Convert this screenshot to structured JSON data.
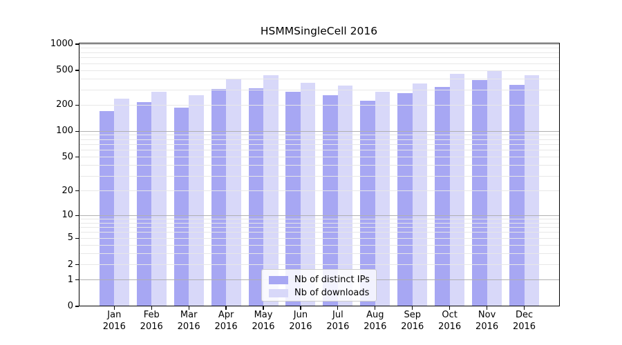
{
  "chart_data": {
    "type": "bar",
    "title": "HSMMSingleCell 2016",
    "categories": [
      "Jan",
      "Feb",
      "Mar",
      "Apr",
      "May",
      "Jun",
      "Jul",
      "Aug",
      "Sep",
      "Oct",
      "Nov",
      "Dec"
    ],
    "x_year_label": "2016",
    "series": [
      {
        "name": "Nb of distinct IPs",
        "color": "#a7a7f3",
        "values": [
          172,
          216,
          186,
          306,
          312,
          285,
          260,
          226,
          276,
          325,
          390,
          341
        ]
      },
      {
        "name": "Nb of downloads",
        "color": "#d8d8f9",
        "values": [
          236,
          285,
          262,
          404,
          440,
          362,
          337,
          285,
          356,
          453,
          505,
          440
        ]
      }
    ],
    "y_ticks": [
      0,
      1,
      2,
      5,
      10,
      20,
      50,
      100,
      200,
      500,
      1000
    ],
    "y_scale": "log10(value+1)",
    "ylim": [
      0,
      1000
    ],
    "grid": {
      "major_values": [
        1,
        10,
        100,
        1000
      ],
      "minor_rule": "2-9 per decade",
      "major_color": "#b0b0b0",
      "minor_color": "#e7e7e7",
      "drawn_over_bars": true
    },
    "legend_position": "bottom-center"
  },
  "colors": {
    "background": "#ffffff",
    "axis": "#000000",
    "text": "#000000"
  }
}
